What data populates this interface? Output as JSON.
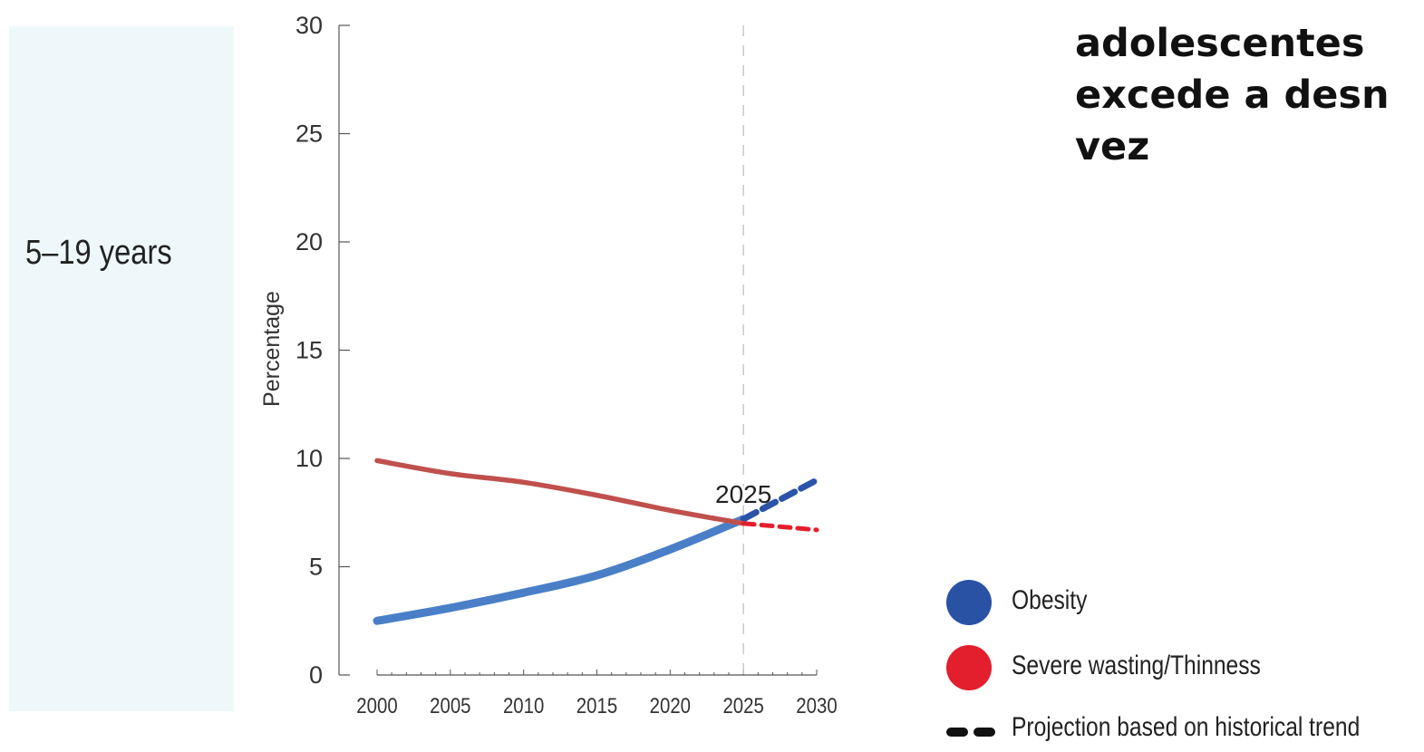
{
  "panel": {
    "age_group": "5–19 years"
  },
  "headline": {
    "lines": [
      "adolescentes",
      "excede a desn",
      "vez"
    ]
  },
  "chart_data": {
    "type": "line",
    "title": "",
    "xlabel": "",
    "ylabel": "Percentage",
    "xlim": [
      2000,
      2030
    ],
    "ylim": [
      0,
      30
    ],
    "x_ticks": [
      2000,
      2005,
      2010,
      2015,
      2020,
      2025,
      2030
    ],
    "y_ticks": [
      0,
      5,
      10,
      15,
      20,
      25,
      30
    ],
    "grid": false,
    "reference_line": {
      "x": 2025,
      "label": "2025"
    },
    "series": [
      {
        "name": "Obesity",
        "color": "#4a7fc8",
        "projection_color": "#2b54a8",
        "x": [
          2000,
          2005,
          2010,
          2015,
          2020,
          2025
        ],
        "y": [
          2.5,
          3.1,
          3.8,
          4.6,
          5.8,
          7.2
        ],
        "projection_x": [
          2025,
          2030
        ],
        "projection_y": [
          7.2,
          9.0
        ]
      },
      {
        "name": "Severe wasting/Thinness",
        "color": "#c0504d",
        "projection_color": "#e31e2d",
        "x": [
          2000,
          2005,
          2010,
          2015,
          2020,
          2025
        ],
        "y": [
          9.9,
          9.3,
          8.9,
          8.3,
          7.6,
          7.0
        ],
        "projection_x": [
          2025,
          2030
        ],
        "projection_y": [
          7.0,
          6.7
        ]
      }
    ]
  },
  "legend": {
    "items": [
      {
        "label": "Obesity",
        "color": "#2a52a4",
        "shape": "circle"
      },
      {
        "label": "Severe wasting/Thinness",
        "color": "#e31e2d",
        "shape": "circle"
      },
      {
        "label": "Projection based on historical trend",
        "color": "#111111",
        "shape": "dash"
      }
    ]
  }
}
